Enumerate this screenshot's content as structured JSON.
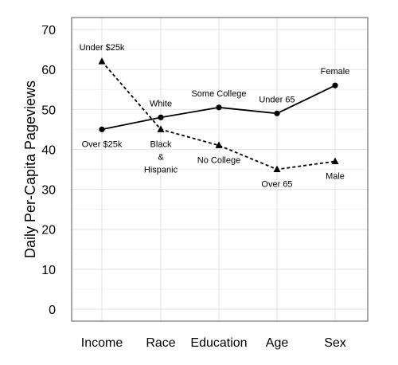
{
  "chart_data": {
    "type": "line",
    "ylabel": "Daily Per-Capita Pageviews",
    "xlabel": "",
    "categories": [
      "Income",
      "Race",
      "Education",
      "Age",
      "Sex"
    ],
    "ylim": [
      -3,
      73
    ],
    "yticks": [
      0,
      10,
      20,
      30,
      40,
      50,
      60,
      70
    ],
    "grid": true,
    "series": [
      {
        "style": "solid",
        "marker": "circle",
        "values": [
          45,
          48,
          50.5,
          49,
          56
        ],
        "point_labels": [
          "Over $25k",
          "White",
          "Some College",
          "Under 65",
          "Female"
        ],
        "label_side": [
          "below",
          "above",
          "above",
          "above",
          "above"
        ]
      },
      {
        "style": "dashed",
        "marker": "triangle",
        "values": [
          62,
          45,
          41,
          35,
          37
        ],
        "point_labels": [
          "Under $25k",
          "Black\n&\nHispanic",
          "No College",
          "Over 65",
          "Male"
        ],
        "label_side": [
          "above",
          "below",
          "below",
          "below",
          "below"
        ]
      }
    ]
  }
}
